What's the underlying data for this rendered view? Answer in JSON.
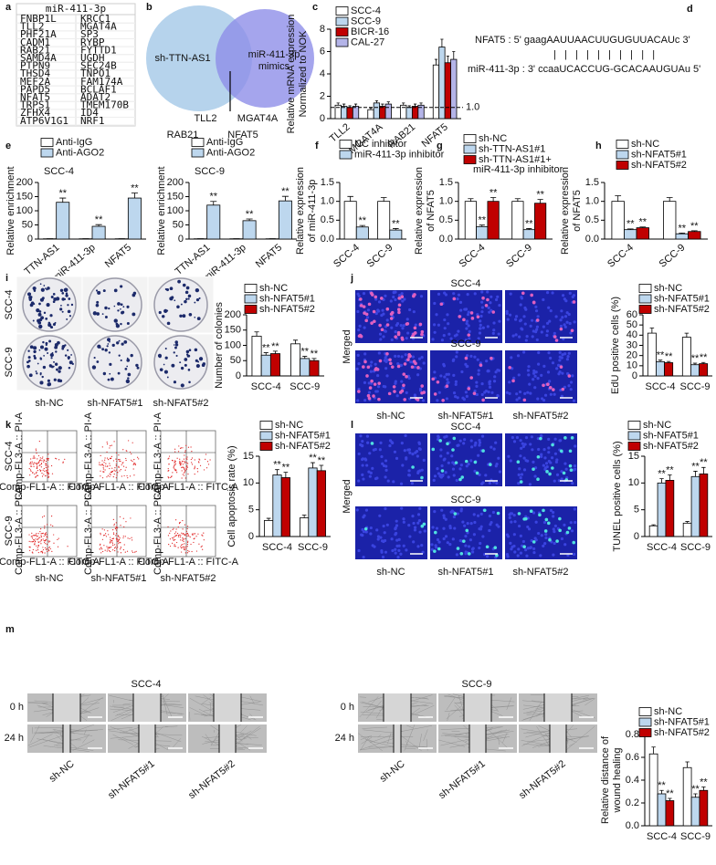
{
  "panel_labels": [
    "a",
    "b",
    "c",
    "d",
    "e",
    "f",
    "g",
    "h",
    "i",
    "j",
    "k",
    "l",
    "m"
  ],
  "table_a": {
    "header": "miR-411-3p",
    "rows": [
      [
        "FNBP1L",
        "KRCC1"
      ],
      [
        "TLL2",
        "MGAT4A"
      ],
      [
        "PHF21A",
        "SP3"
      ],
      [
        "CADM1",
        "RYBP"
      ],
      [
        "RAB21",
        "FYTTD1"
      ],
      [
        "SAMD4A",
        "UGDH"
      ],
      [
        "PTPN9",
        "SEC24B"
      ],
      [
        "THSD4",
        "TNPO1"
      ],
      [
        "MEF2A",
        "FAM174A"
      ],
      [
        "PAPD5",
        "BCLAF1"
      ],
      [
        "NFAT5",
        "ADAT2"
      ],
      [
        "TRPS1",
        "TMEM170B"
      ],
      [
        "ZFHX4",
        "ID4"
      ],
      [
        "ATP6V1G1",
        "NRF1"
      ]
    ]
  },
  "venn_b": {
    "left": "sh-TTN-AS1",
    "right": [
      "miR-411-3p",
      "mimics"
    ],
    "genes": [
      "TLL2",
      "MGAT4A",
      "RAB21",
      "NFAT5"
    ]
  },
  "sequence_d": {
    "lines": [
      "NFAT5 : 5' gaagAAUUAACUUGUGUUACAUc 3'",
      "|   |   |   |   |   |   |   |   |   |",
      "miR-411-3p : 3' ccaaUCACCUG-GCACAAUGUAu 5'"
    ]
  },
  "chart_data": [
    {
      "type": "bar",
      "ylabel": [
        "Relative mRNA expression",
        "Normalized to NOK"
      ],
      "categories": [
        "TLL2",
        "MGAT4A",
        "RAB21",
        "NFAT5"
      ],
      "series": [
        {
          "name": "SCC-4",
          "color": "#ffffff",
          "values": [
            1.2,
            0.8,
            1.2,
            4.8
          ],
          "errors": [
            0.2,
            0.15,
            0.2,
            0.5
          ]
        },
        {
          "name": "SCC-9",
          "color": "#bdd7ee",
          "values": [
            1.1,
            1.4,
            1.0,
            6.4
          ],
          "errors": [
            0.2,
            0.2,
            0.15,
            0.7
          ]
        },
        {
          "name": "BICR-16",
          "color": "#c00000",
          "values": [
            1.0,
            1.1,
            1.1,
            5.0
          ],
          "errors": [
            0.15,
            0.2,
            0.2,
            0.6
          ]
        },
        {
          "name": "CAL-27",
          "color": "#b4b4e8",
          "values": [
            1.1,
            1.3,
            1.2,
            5.3
          ],
          "errors": [
            0.2,
            0.2,
            0.2,
            0.7
          ]
        }
      ],
      "ylim": [
        0,
        8
      ],
      "yticks": [
        0,
        2,
        4,
        6,
        8
      ],
      "legend": "top-left",
      "reference_line": {
        "value": 1,
        "label": "1.0"
      }
    },
    {
      "type": "bar",
      "subtitle": "SCC-4",
      "ylabel": [
        "Relative enrichment"
      ],
      "categories": [
        "TTN-AS1",
        "miR-411-3p",
        "NFAT5"
      ],
      "series": [
        {
          "name": "Anti-IgG",
          "color": "#ffffff",
          "values": [
            1,
            1,
            1
          ],
          "errors": [
            0.3,
            0.3,
            0.3
          ],
          "significance": [
            null,
            null,
            null
          ]
        },
        {
          "name": "Anti-AGO2",
          "color": "#bdd7ee",
          "values": [
            130,
            45,
            145
          ],
          "errors": [
            15,
            6,
            18
          ],
          "significance": [
            "**",
            "**",
            "**"
          ]
        }
      ],
      "ylim": [
        0,
        200
      ],
      "yticks": [
        0,
        50,
        100,
        150,
        200
      ],
      "legend": "top-left"
    },
    {
      "type": "bar",
      "subtitle": "SCC-9",
      "ylabel": [
        "Relative enrichment"
      ],
      "categories": [
        "TTN-AS1",
        "miR-411-3p",
        "NFAT5"
      ],
      "series": [
        {
          "name": "Anti-IgG",
          "color": "#ffffff",
          "values": [
            1,
            1,
            1
          ],
          "errors": [
            0.3,
            0.3,
            0.3
          ],
          "significance": [
            null,
            null,
            null
          ]
        },
        {
          "name": "Anti-AGO2",
          "color": "#bdd7ee",
          "values": [
            120,
            65,
            135
          ],
          "errors": [
            13,
            6,
            16
          ],
          "significance": [
            "**",
            "**",
            "**"
          ]
        }
      ],
      "ylim": [
        0,
        200
      ],
      "yticks": [
        0,
        50,
        100,
        150,
        200
      ],
      "legend": "top-left"
    },
    {
      "type": "bar",
      "ylabel": [
        "Relative expression",
        "of miR-411-3p"
      ],
      "categories": [
        "SCC-4",
        "SCC-9"
      ],
      "series": [
        {
          "name": "NC inhibitor",
          "color": "#ffffff",
          "values": [
            1.0,
            1.0
          ],
          "errors": [
            0.13,
            0.1
          ],
          "significance": [
            null,
            null
          ]
        },
        {
          "name": "miR-411-3p inhibitor",
          "color": "#bdd7ee",
          "values": [
            0.32,
            0.24
          ],
          "errors": [
            0.04,
            0.04
          ],
          "significance": [
            "**",
            "**"
          ]
        }
      ],
      "ylim": [
        0,
        1.5
      ],
      "yticks": [
        {
          "value": 0,
          "label": "0.0"
        },
        0.5,
        {
          "value": 1,
          "label": "1.0"
        },
        1.5
      ],
      "legend": "top-left"
    },
    {
      "type": "bar",
      "ylabel": [
        "Relative expression",
        "of NFAT5"
      ],
      "categories": [
        "SCC-4",
        "SCC-9"
      ],
      "series": [
        {
          "name": "sh-NC",
          "color": "#ffffff",
          "values": [
            1.0,
            1.0
          ],
          "errors": [
            0.07,
            0.07
          ],
          "significance": [
            null,
            null
          ]
        },
        {
          "name": "sh-TTN-AS1#1",
          "color": "#bdd7ee",
          "values": [
            0.33,
            0.25
          ],
          "errors": [
            0.04,
            0.03
          ],
          "significance": [
            "**",
            "**"
          ]
        },
        {
          "name": "sh-TTN-AS1#1+ miR-411-3p inhibitor",
          "color": "#c00000",
          "values": [
            1.0,
            0.95
          ],
          "errors": [
            0.1,
            0.1
          ],
          "significance": [
            "**",
            "**"
          ]
        }
      ],
      "ylim": [
        0,
        1.5
      ],
      "yticks": [
        {
          "value": 0,
          "label": "0.0"
        },
        0.5,
        {
          "value": 1,
          "label": "1.0"
        },
        1.5
      ],
      "legend": "top-left"
    },
    {
      "type": "bar",
      "ylabel": [
        "Relative expression",
        "of NFAT5"
      ],
      "categories": [
        "SCC-4",
        "SCC-9"
      ],
      "series": [
        {
          "name": "sh-NC",
          "color": "#ffffff",
          "values": [
            1.0,
            1.0
          ],
          "errors": [
            0.15,
            0.1
          ],
          "significance": [
            null,
            null
          ]
        },
        {
          "name": "sh-NFAT5#1",
          "color": "#bdd7ee",
          "values": [
            0.25,
            0.14
          ],
          "errors": [
            0.02,
            0.02
          ],
          "significance": [
            "**",
            "**"
          ]
        },
        {
          "name": "sh-NFAT5#2",
          "color": "#c00000",
          "values": [
            0.3,
            0.2
          ],
          "errors": [
            0.02,
            0.02
          ],
          "significance": [
            "**",
            "**"
          ]
        }
      ],
      "ylim": [
        0,
        1.5
      ],
      "yticks": [
        {
          "value": 0,
          "label": "0.0"
        },
        0.5,
        {
          "value": 1,
          "label": "1.0"
        },
        1.5
      ],
      "legend": "top-left"
    },
    {
      "type": "bar",
      "ylabel": [
        "Number of colonies"
      ],
      "categories": [
        "SCC-4",
        "SCC-9"
      ],
      "series": [
        {
          "name": "sh-NC",
          "color": "#ffffff",
          "values": [
            130,
            105
          ],
          "errors": [
            14,
            12
          ],
          "significance": [
            null,
            null
          ]
        },
        {
          "name": "sh-NFAT5#1",
          "color": "#bdd7ee",
          "values": [
            68,
            57
          ],
          "errors": [
            8,
            7
          ],
          "significance": [
            "**",
            "**"
          ]
        },
        {
          "name": "sh-NFAT5#2",
          "color": "#c00000",
          "values": [
            73,
            50
          ],
          "errors": [
            8,
            7
          ],
          "significance": [
            "**",
            "**"
          ]
        }
      ],
      "ylim": [
        0,
        200
      ],
      "yticks": [
        0,
        50,
        100,
        150,
        200
      ],
      "legend": "top-left"
    },
    {
      "type": "bar",
      "ylabel": [
        "EdU positive cells (%)"
      ],
      "categories": [
        "SCC-4",
        "SCC-9"
      ],
      "series": [
        {
          "name": "sh-NC",
          "color": "#ffffff",
          "values": [
            42,
            38
          ],
          "errors": [
            5,
            4
          ],
          "significance": [
            null,
            null
          ]
        },
        {
          "name": "sh-NFAT5#1",
          "color": "#bdd7ee",
          "values": [
            14,
            11
          ],
          "errors": [
            1.5,
            1.5
          ],
          "significance": [
            "**",
            "**"
          ]
        },
        {
          "name": "sh-NFAT5#2",
          "color": "#c00000",
          "values": [
            13,
            12
          ],
          "errors": [
            1.2,
            1.2
          ],
          "significance": [
            "**",
            "**"
          ]
        }
      ],
      "ylim": [
        0,
        60
      ],
      "yticks": [
        0,
        10,
        20,
        30,
        40,
        50,
        60
      ],
      "legend": "top-left"
    },
    {
      "type": "bar",
      "ylabel": [
        "Cell apoptosis rate (%)"
      ],
      "categories": [
        "SCC-4",
        "SCC-9"
      ],
      "series": [
        {
          "name": "sh-NC",
          "color": "#ffffff",
          "values": [
            3,
            3.5
          ],
          "errors": [
            0.4,
            0.5
          ],
          "significance": [
            null,
            null
          ]
        },
        {
          "name": "sh-NFAT5#1",
          "color": "#bdd7ee",
          "values": [
            11.5,
            12.8
          ],
          "errors": [
            1.0,
            1.0
          ],
          "significance": [
            "**",
            "**"
          ]
        },
        {
          "name": "sh-NFAT5#2",
          "color": "#c00000",
          "values": [
            11,
            12.3
          ],
          "errors": [
            1.0,
            1.0
          ],
          "significance": [
            "**",
            "**"
          ]
        }
      ],
      "ylim": [
        0,
        15
      ],
      "yticks": [
        0,
        5,
        10,
        15
      ],
      "legend": "top-left"
    },
    {
      "type": "bar",
      "ylabel": [
        "TUNEL positive cells (%)"
      ],
      "categories": [
        "SCC-4",
        "SCC-9"
      ],
      "series": [
        {
          "name": "sh-NC",
          "color": "#ffffff",
          "values": [
            2,
            2.5
          ],
          "errors": [
            0.2,
            0.3
          ],
          "significance": [
            null,
            null
          ]
        },
        {
          "name": "sh-NFAT5#1",
          "color": "#bdd7ee",
          "values": [
            10,
            11.2
          ],
          "errors": [
            0.8,
            1.0
          ],
          "significance": [
            "**",
            "**"
          ]
        },
        {
          "name": "sh-NFAT5#2",
          "color": "#c00000",
          "values": [
            10.5,
            11.7
          ],
          "errors": [
            1.0,
            1.2
          ],
          "significance": [
            "**",
            "**"
          ]
        }
      ],
      "ylim": [
        0,
        15
      ],
      "yticks": [
        0,
        5,
        10,
        15
      ],
      "legend": "top-left"
    },
    {
      "type": "bar",
      "ylabel": [
        "Relative distance of",
        "wound healing"
      ],
      "categories": [
        "SCC-4",
        "SCC-9"
      ],
      "series": [
        {
          "name": "sh-NC",
          "color": "#ffffff",
          "values": [
            0.63,
            0.51
          ],
          "errors": [
            0.06,
            0.05
          ],
          "significance": [
            null,
            null
          ]
        },
        {
          "name": "sh-NFAT5#1",
          "color": "#bdd7ee",
          "values": [
            0.28,
            0.25
          ],
          "errors": [
            0.03,
            0.03
          ],
          "significance": [
            "**",
            "**"
          ]
        },
        {
          "name": "sh-NFAT5#2",
          "color": "#c00000",
          "values": [
            0.22,
            0.31
          ],
          "errors": [
            0.02,
            0.03
          ],
          "significance": [
            "**",
            "**"
          ]
        }
      ],
      "ylim": [
        0,
        0.8
      ],
      "yticks": [
        {
          "value": 0,
          "label": "0.0"
        },
        0.2,
        0.4,
        0.6,
        0.8
      ],
      "legend": "top-left"
    }
  ],
  "images": {
    "i": {
      "rows": [
        "SCC-4",
        "SCC-9"
      ],
      "columns": [
        "sh-NC",
        "sh-NFAT5#1",
        "sh-NFAT5#2"
      ]
    },
    "j": {
      "rows": [
        "SCC-4",
        "SCC-9"
      ],
      "side": "Merged",
      "columns": [
        "sh-NC",
        "sh-NFAT5#1",
        "sh-NFAT5#2"
      ]
    },
    "k": {
      "rows": [
        "SCC-4",
        "SCC-9"
      ],
      "columns": [
        "sh-NC",
        "sh-NFAT5#1",
        "sh-NFAT5#2"
      ],
      "x_axis": "Comp-FL1-A :: FITC-A",
      "y_axis": "Comp-FL3-A :: PI-A"
    },
    "l": {
      "rows": [
        "SCC-4",
        "SCC-9"
      ],
      "side": "Merged",
      "columns": [
        "sh-NC",
        "sh-NFAT5#1",
        "sh-NFAT5#2"
      ]
    },
    "m": {
      "groups": [
        "SCC-4",
        "SCC-9"
      ],
      "times": [
        "0 h",
        "24 h"
      ],
      "columns": [
        "sh-NC",
        "sh-NFAT5#1",
        "sh-NFAT5#2"
      ]
    }
  }
}
